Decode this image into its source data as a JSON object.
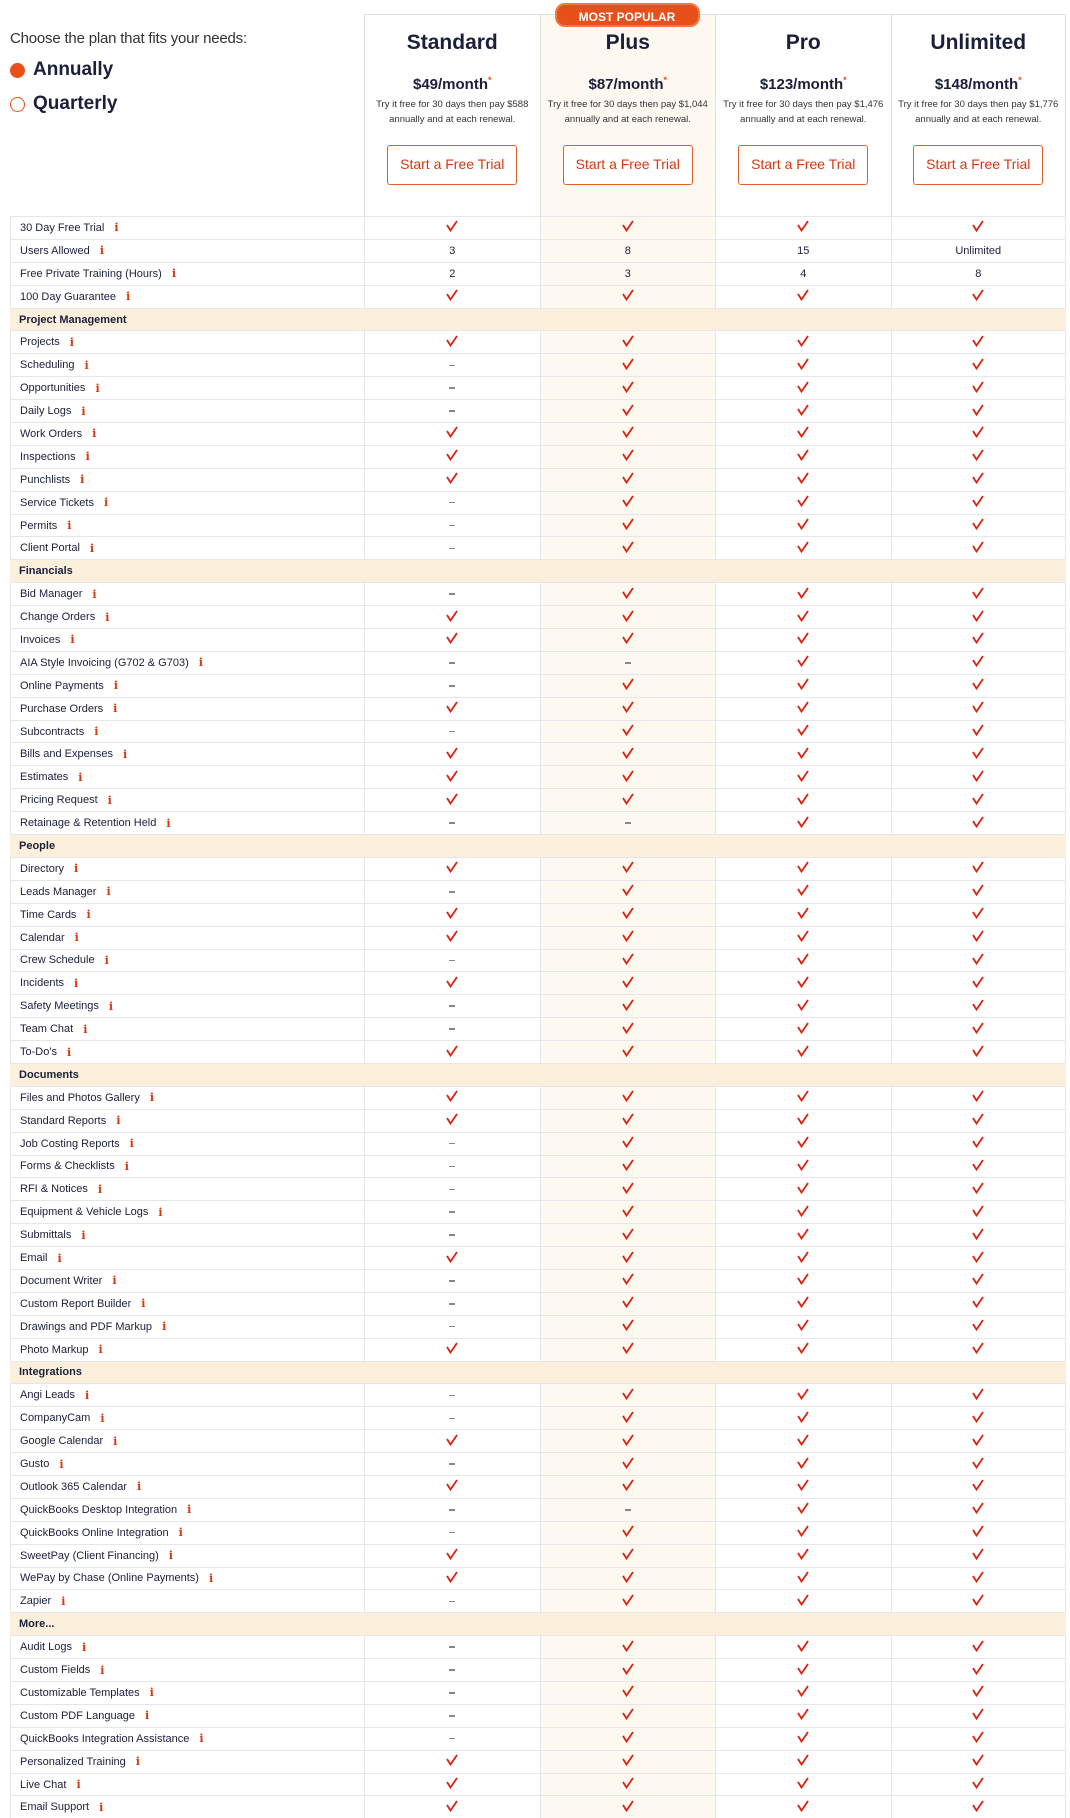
{
  "left": {
    "prompt": "Choose the plan that fits your needs:",
    "options": [
      {
        "label": "Annually",
        "selected": true
      },
      {
        "label": "Quarterly",
        "selected": false
      }
    ]
  },
  "accent": "#e8501a",
  "plans": [
    {
      "name": "Standard",
      "price": "$49/month",
      "note": "*",
      "desc": "Try it free for 30 days then pay $588 annually and at each renewal.",
      "button": "Start a Free Trial"
    },
    {
      "name": "Plus",
      "badge": "MOST POPULAR",
      "price": "$87/month",
      "note": "*",
      "desc": "Try it free for 30 days then pay $1,044 annually and at each renewal.",
      "button": "Start a Free Trial"
    },
    {
      "name": "Pro",
      "price": "$123/month",
      "note": "*",
      "desc": "Try it free for 30 days then pay $1,476 annually and at each renewal.",
      "button": "Start a Free Trial"
    },
    {
      "name": "Unlimited",
      "price": "$148/month",
      "note": "*",
      "desc": "Try it free for 30 days then pay $1,776 annually and at each renewal.",
      "button": "Start a Free Trial"
    }
  ],
  "info_icon": "i",
  "sections": [
    {
      "title": "",
      "rows": [
        [
          "30 Day Free Trial",
          "check",
          "check",
          "check",
          "check"
        ],
        [
          "Users Allowed",
          "3",
          "8",
          "15",
          "Unlimited"
        ],
        [
          "Free Private Training (Hours)",
          "2",
          "3",
          "4",
          "8"
        ],
        [
          "100 Day Guarantee",
          "check",
          "check",
          "check",
          "check"
        ]
      ]
    },
    {
      "title": "Project Management",
      "rows": [
        [
          "Projects",
          "check",
          "check",
          "check",
          "check"
        ],
        [
          "Scheduling",
          "dash",
          "check",
          "check",
          "check"
        ],
        [
          "Opportunities",
          "dash",
          "check",
          "check",
          "check"
        ],
        [
          "Daily Logs",
          "dash",
          "check",
          "check",
          "check"
        ],
        [
          "Work Orders",
          "check",
          "check",
          "check",
          "check"
        ],
        [
          "Inspections",
          "check",
          "check",
          "check",
          "check"
        ],
        [
          "Punchlists",
          "check",
          "check",
          "check",
          "check"
        ],
        [
          "Service Tickets",
          "dash",
          "check",
          "check",
          "check"
        ],
        [
          "Permits",
          "dash",
          "check",
          "check",
          "check"
        ],
        [
          "Client Portal",
          "dash",
          "check",
          "check",
          "check"
        ]
      ]
    },
    {
      "title": "Financials",
      "rows": [
        [
          "Bid Manager",
          "dash",
          "check",
          "check",
          "check"
        ],
        [
          "Change Orders",
          "check",
          "check",
          "check",
          "check"
        ],
        [
          "Invoices",
          "check",
          "check",
          "check",
          "check"
        ],
        [
          "AIA Style Invoicing (G702 & G703)",
          "dash",
          "dash",
          "check",
          "check"
        ],
        [
          "Online Payments",
          "dash",
          "check",
          "check",
          "check"
        ],
        [
          "Purchase Orders",
          "check",
          "check",
          "check",
          "check"
        ],
        [
          "Subcontracts",
          "dash",
          "check",
          "check",
          "check"
        ],
        [
          "Bills and Expenses",
          "check",
          "check",
          "check",
          "check"
        ],
        [
          "Estimates",
          "check",
          "check",
          "check",
          "check"
        ],
        [
          "Pricing Request",
          "check",
          "check",
          "check",
          "check"
        ],
        [
          "Retainage & Retention Held",
          "dash",
          "dash",
          "check",
          "check"
        ]
      ]
    },
    {
      "title": "People",
      "rows": [
        [
          "Directory",
          "check",
          "check",
          "check",
          "check"
        ],
        [
          "Leads Manager",
          "dash",
          "check",
          "check",
          "check"
        ],
        [
          "Time Cards",
          "check",
          "check",
          "check",
          "check"
        ],
        [
          "Calendar",
          "check",
          "check",
          "check",
          "check"
        ],
        [
          "Crew Schedule",
          "dash",
          "check",
          "check",
          "check"
        ],
        [
          "Incidents",
          "check",
          "check",
          "check",
          "check"
        ],
        [
          "Safety Meetings",
          "dash",
          "check",
          "check",
          "check"
        ],
        [
          "Team Chat",
          "dash",
          "check",
          "check",
          "check"
        ],
        [
          "To-Do's",
          "check",
          "check",
          "check",
          "check"
        ]
      ]
    },
    {
      "title": "Documents",
      "rows": [
        [
          "Files and Photos Gallery",
          "check",
          "check",
          "check",
          "check"
        ],
        [
          "Standard Reports",
          "check",
          "check",
          "check",
          "check"
        ],
        [
          "Job Costing Reports",
          "dash",
          "check",
          "check",
          "check"
        ],
        [
          "Forms & Checklists",
          "dash",
          "check",
          "check",
          "check"
        ],
        [
          "RFI & Notices",
          "dash",
          "check",
          "check",
          "check"
        ],
        [
          "Equipment & Vehicle Logs",
          "dash",
          "check",
          "check",
          "check"
        ],
        [
          "Submittals",
          "dash",
          "check",
          "check",
          "check"
        ],
        [
          "Email",
          "check",
          "check",
          "check",
          "check"
        ],
        [
          "Document Writer",
          "dash",
          "check",
          "check",
          "check"
        ],
        [
          "Custom Report Builder",
          "dash",
          "check",
          "check",
          "check"
        ],
        [
          "Drawings and PDF Markup",
          "dash",
          "check",
          "check",
          "check"
        ],
        [
          "Photo Markup",
          "check",
          "check",
          "check",
          "check"
        ]
      ]
    },
    {
      "title": "Integrations",
      "rows": [
        [
          "Angi Leads",
          "dash",
          "check",
          "check",
          "check"
        ],
        [
          "CompanyCam",
          "dash",
          "check",
          "check",
          "check"
        ],
        [
          "Google Calendar",
          "check",
          "check",
          "check",
          "check"
        ],
        [
          "Gusto",
          "dash",
          "check",
          "check",
          "check"
        ],
        [
          "Outlook 365 Calendar",
          "check",
          "check",
          "check",
          "check"
        ],
        [
          "QuickBooks Desktop Integration",
          "dash",
          "dash",
          "check",
          "check"
        ],
        [
          "QuickBooks Online Integration",
          "dash",
          "check",
          "check",
          "check"
        ],
        [
          "SweetPay (Client Financing)",
          "check",
          "check",
          "check",
          "check"
        ],
        [
          "WePay by Chase (Online Payments)",
          "check",
          "check",
          "check",
          "check"
        ],
        [
          "Zapier",
          "dash",
          "check",
          "check",
          "check"
        ]
      ]
    },
    {
      "title": "More...",
      "rows": [
        [
          "Audit Logs",
          "dash",
          "check",
          "check",
          "check"
        ],
        [
          "Custom Fields",
          "dash",
          "check",
          "check",
          "check"
        ],
        [
          "Customizable Templates",
          "dash",
          "check",
          "check",
          "check"
        ],
        [
          "Custom PDF Language",
          "dash",
          "check",
          "check",
          "check"
        ],
        [
          "QuickBooks Integration Assistance",
          "dash",
          "check",
          "check",
          "check"
        ],
        [
          "Personalized Training",
          "check",
          "check",
          "check",
          "check"
        ],
        [
          "Live Chat",
          "check",
          "check",
          "check",
          "check"
        ],
        [
          "Email Support",
          "check",
          "check",
          "check",
          "check"
        ]
      ]
    }
  ]
}
